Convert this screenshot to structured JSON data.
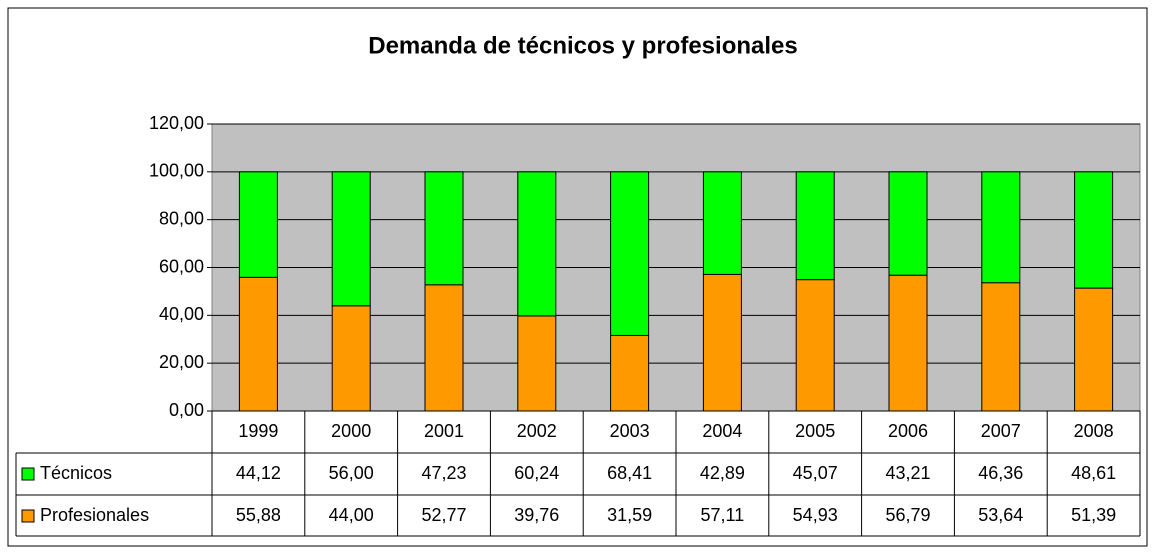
{
  "chart_data": {
    "type": "bar",
    "stacked": true,
    "title": "Demanda de técnicos y profesionales",
    "categories": [
      "1999",
      "2000",
      "2001",
      "2002",
      "2003",
      "2004",
      "2005",
      "2006",
      "2007",
      "2008"
    ],
    "series": [
      {
        "name": "Técnicos",
        "color": "#00ff00",
        "values": [
          44.12,
          56.0,
          47.23,
          60.24,
          68.41,
          42.89,
          45.07,
          43.21,
          46.36,
          48.61
        ],
        "value_labels": [
          "44,12",
          "56,00",
          "47,23",
          "60,24",
          "68,41",
          "42,89",
          "45,07",
          "43,21",
          "46,36",
          "48,61"
        ]
      },
      {
        "name": "Profesionales",
        "color": "#ff9900",
        "values": [
          55.88,
          44.0,
          52.77,
          39.76,
          31.59,
          57.11,
          54.93,
          56.79,
          53.64,
          51.39
        ],
        "value_labels": [
          "55,88",
          "44,00",
          "52,77",
          "39,76",
          "31,59",
          "57,11",
          "54,93",
          "56,79",
          "53,64",
          "51,39"
        ]
      }
    ],
    "ylim": [
      0,
      120
    ],
    "yticks": [
      {
        "value": 0,
        "label": "0,00"
      },
      {
        "value": 20,
        "label": "20,00"
      },
      {
        "value": 40,
        "label": "40,00"
      },
      {
        "value": 60,
        "label": "60,00"
      },
      {
        "value": 80,
        "label": "80,00"
      },
      {
        "value": 100,
        "label": "100,00"
      },
      {
        "value": 120,
        "label": "120,00"
      }
    ],
    "grid": true
  }
}
